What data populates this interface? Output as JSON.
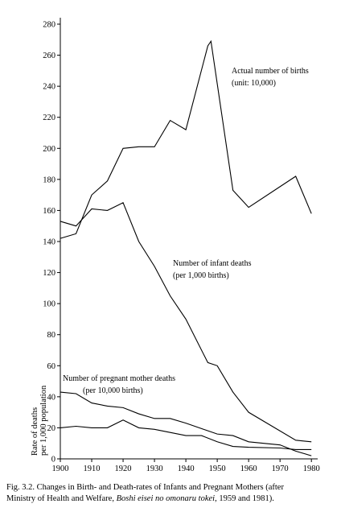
{
  "chart_data": {
    "type": "line",
    "y_label": [
      "Rate of deaths",
      "per 1,000 population"
    ],
    "xlim": [
      1900,
      1982
    ],
    "ylim": [
      0,
      280
    ],
    "xticks": [
      1900,
      1910,
      1920,
      1930,
      1940,
      1950,
      1960,
      1970,
      1980
    ],
    "yticks": [
      0,
      20,
      40,
      60,
      80,
      100,
      120,
      140,
      160,
      180,
      200,
      220,
      240,
      260,
      280
    ],
    "grid": false,
    "series": [
      {
        "name": [
          "Actual number of births",
          "(unit: 10,000)"
        ],
        "color": "#000000",
        "x": [
          1900,
          1905,
          1910,
          1915,
          1920,
          1925,
          1930,
          1935,
          1940,
          1947,
          1948,
          1955,
          1960,
          1975,
          1980
        ],
        "values": [
          142,
          145,
          170,
          179,
          200,
          201,
          201,
          218,
          212,
          266,
          269,
          173,
          162,
          182,
          158
        ]
      },
      {
        "name": [
          "Number of infant deaths",
          "(per 1,000 births)"
        ],
        "color": "#000000",
        "x": [
          1900,
          1905,
          1910,
          1915,
          1920,
          1925,
          1930,
          1935,
          1940,
          1947,
          1950,
          1955,
          1960,
          1975,
          1980
        ],
        "values": [
          153,
          150,
          161,
          160,
          165,
          140,
          124,
          105,
          90,
          62,
          60,
          43,
          30,
          12,
          11
        ]
      },
      {
        "name": [
          "Number of pregnant mother deaths",
          "(per 10,000 births)"
        ],
        "color": "#000000",
        "x": [
          1900,
          1905,
          1910,
          1915,
          1920,
          1925,
          1930,
          1935,
          1940,
          1950,
          1955,
          1960,
          1970,
          1975,
          1980
        ],
        "values": [
          43,
          42,
          36,
          34,
          33,
          29,
          26,
          26,
          23,
          16,
          15,
          11,
          9,
          5,
          2
        ]
      },
      {
        "color": "#000000",
        "x": [
          1900,
          1905,
          1910,
          1915,
          1920,
          1925,
          1930,
          1935,
          1940,
          1945,
          1950,
          1955,
          1960,
          1970,
          1975,
          1980
        ],
        "values": [
          20,
          21,
          20,
          20,
          25,
          20,
          19,
          17,
          15,
          15,
          11,
          8,
          7.5,
          7,
          6,
          6
        ]
      }
    ],
    "caption": [
      "Fig. 3.2. Changes in Birth- and Death-rates of Infants and Pregnant Mothers (after",
      "Ministry of Health and Welfare, ",
      "Boshi eisei no omonaru tokei",
      ", 1959 and 1981)."
    ]
  }
}
